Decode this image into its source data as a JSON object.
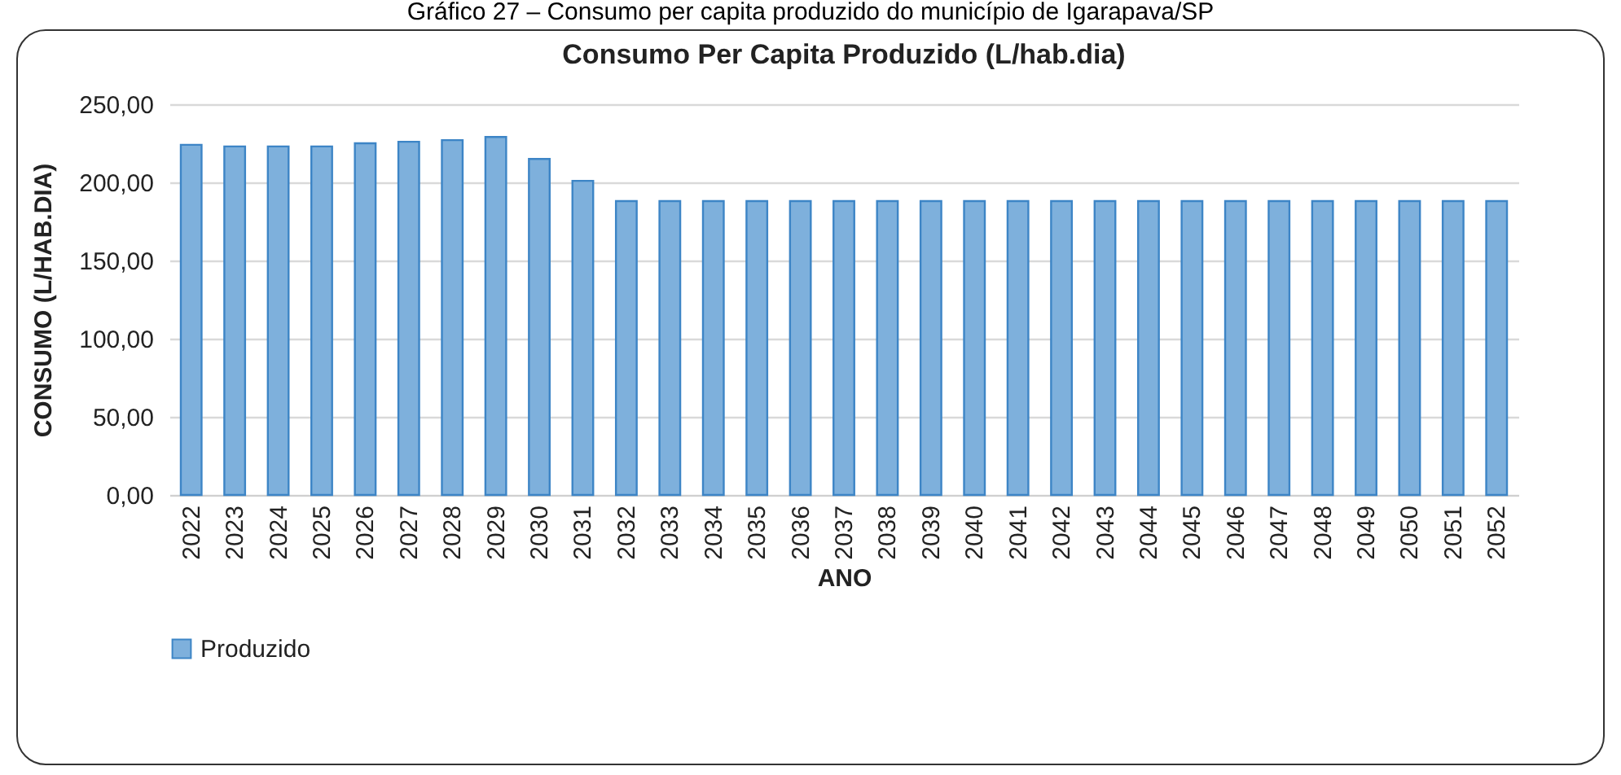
{
  "chart_data": {
    "type": "bar",
    "title": "Consumo Per Capita Produzido (L/hab.dia)",
    "xlabel": "ANO",
    "ylabel": "CONSUMO (L/HAB.DIA)",
    "annotations": [
      "Gráfico 27 – Consumo per capita produzido do município de Igarapava/SP"
    ],
    "categories": [
      "2022",
      "2023",
      "2024",
      "2025",
      "2026",
      "2027",
      "2028",
      "2029",
      "2030",
      "2031",
      "2032",
      "2033",
      "2034",
      "2035",
      "2036",
      "2037",
      "2038",
      "2039",
      "2040",
      "2041",
      "2042",
      "2043",
      "2044",
      "2045",
      "2046",
      "2047",
      "2048",
      "2049",
      "2050",
      "2051",
      "2052"
    ],
    "series": [
      {
        "name": "Produzido",
        "color": "#7eb0dc",
        "values": [
          224,
          223,
          223,
          223,
          225,
          226,
          227,
          229,
          215,
          201,
          188,
          188,
          188,
          188,
          188,
          188,
          188,
          188,
          188,
          188,
          188,
          188,
          188,
          188,
          188,
          188,
          188,
          188,
          188,
          188,
          188
        ]
      }
    ],
    "ylim": [
      0,
      250
    ],
    "yticks": [
      {
        "value": 0,
        "label": "0,00"
      },
      {
        "value": 50,
        "label": "50,00"
      },
      {
        "value": 100,
        "label": "100,00"
      },
      {
        "value": 150,
        "label": "150,00"
      },
      {
        "value": 200,
        "label": "200,00"
      },
      {
        "value": 250,
        "label": "250,00"
      }
    ],
    "grid": "y",
    "legend": "bottom"
  }
}
